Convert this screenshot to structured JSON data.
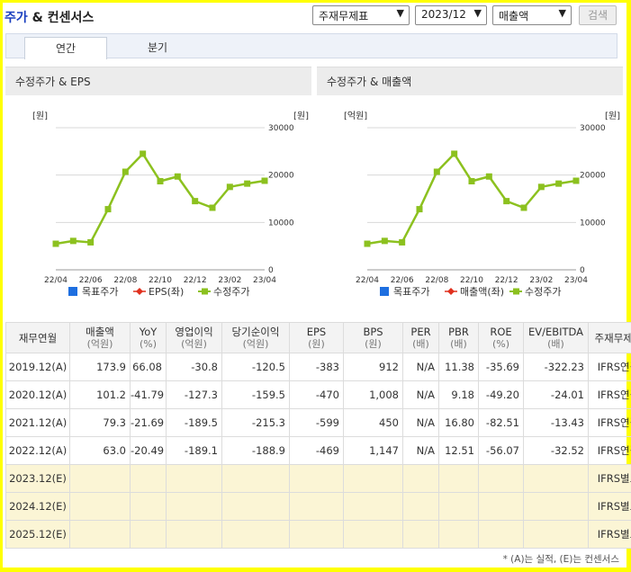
{
  "header": {
    "title_blue": "주가",
    "title_rest": " & 컨센서스",
    "select_statement": "주재무제표",
    "select_period": "2023/12",
    "select_metric": "매출액",
    "search_label": "검색"
  },
  "tabs": [
    "연간",
    "분기"
  ],
  "charts": [
    {
      "title": "수정주가 & EPS",
      "left_unit": "[원]",
      "right_unit": "[원]",
      "legend": [
        "목표주가",
        "EPS(좌)",
        "수정주가"
      ]
    },
    {
      "title": "수정주가 & 매출액",
      "left_unit": "[억원]",
      "right_unit": "[원]",
      "legend": [
        "목표주가",
        "매출액(좌)",
        "수정주가"
      ]
    }
  ],
  "chart_data": [
    {
      "type": "line",
      "title": "수정주가 & EPS",
      "x": [
        "22/04",
        "22/05",
        "22/06",
        "22/07",
        "22/08",
        "22/09",
        "22/10",
        "22/11",
        "22/12",
        "23/01",
        "23/02",
        "23/03",
        "23/04"
      ],
      "x_ticks": [
        "22/04",
        "22/06",
        "22/08",
        "22/10",
        "22/12",
        "23/02",
        "23/04"
      ],
      "y_right_ticks": [
        "0",
        "10000",
        "20000",
        "30000"
      ],
      "y_right_range": [
        0,
        30000
      ],
      "series": [
        {
          "name": "수정주가",
          "color": "#8cc11f",
          "values": [
            5500,
            6100,
            5800,
            12800,
            20700,
            24500,
            18700,
            19700,
            14500,
            13100,
            17500,
            18200,
            18800
          ]
        }
      ]
    },
    {
      "type": "line",
      "title": "수정주가 & 매출액",
      "x": [
        "22/04",
        "22/05",
        "22/06",
        "22/07",
        "22/08",
        "22/09",
        "22/10",
        "22/11",
        "22/12",
        "23/01",
        "23/02",
        "23/03",
        "23/04"
      ],
      "x_ticks": [
        "22/04",
        "22/06",
        "22/08",
        "22/10",
        "22/12",
        "23/02",
        "23/04"
      ],
      "y_right_ticks": [
        "0",
        "10000",
        "20000",
        "30000"
      ],
      "y_right_range": [
        0,
        30000
      ],
      "series": [
        {
          "name": "수정주가",
          "color": "#8cc11f",
          "values": [
            5500,
            6100,
            5800,
            12800,
            20700,
            24500,
            18700,
            19700,
            14500,
            13100,
            17500,
            18200,
            18800
          ]
        }
      ]
    }
  ],
  "table": {
    "headers": [
      {
        "label": "재무연월",
        "unit": ""
      },
      {
        "label": "매출액",
        "unit": "(억원)"
      },
      {
        "label": "YoY",
        "unit": "(%)"
      },
      {
        "label": "영업이익",
        "unit": "(억원)"
      },
      {
        "label": "당기순이익",
        "unit": "(억원)"
      },
      {
        "label": "EPS",
        "unit": "(원)"
      },
      {
        "label": "BPS",
        "unit": "(원)"
      },
      {
        "label": "PER",
        "unit": "(배)"
      },
      {
        "label": "PBR",
        "unit": "(배)"
      },
      {
        "label": "ROE",
        "unit": "(%)"
      },
      {
        "label": "EV/EBITDA",
        "unit": "(배)"
      },
      {
        "label": "주재무제표",
        "unit": ""
      }
    ],
    "rows": [
      {
        "est": false,
        "cells": [
          "2019.12(A)",
          "173.9",
          "66.08",
          "-30.8",
          "-120.5",
          "-383",
          "912",
          "N/A",
          "11.38",
          "-35.69",
          "-322.23",
          "IFRS연결"
        ]
      },
      {
        "est": false,
        "cells": [
          "2020.12(A)",
          "101.2",
          "-41.79",
          "-127.3",
          "-159.5",
          "-470",
          "1,008",
          "N/A",
          "9.18",
          "-49.20",
          "-24.01",
          "IFRS연결"
        ]
      },
      {
        "est": false,
        "cells": [
          "2021.12(A)",
          "79.3",
          "-21.69",
          "-189.5",
          "-215.3",
          "-599",
          "450",
          "N/A",
          "16.80",
          "-82.51",
          "-13.43",
          "IFRS연결"
        ]
      },
      {
        "est": false,
        "cells": [
          "2022.12(A)",
          "63.0",
          "-20.49",
          "-189.1",
          "-188.9",
          "-469",
          "1,147",
          "N/A",
          "12.51",
          "-56.07",
          "-32.52",
          "IFRS연결"
        ]
      },
      {
        "est": true,
        "cells": [
          "2023.12(E)",
          "",
          "",
          "",
          "",
          "",
          "",
          "",
          "",
          "",
          "",
          "IFRS별도"
        ]
      },
      {
        "est": true,
        "cells": [
          "2024.12(E)",
          "",
          "",
          "",
          "",
          "",
          "",
          "",
          "",
          "",
          "",
          "IFRS별도"
        ]
      },
      {
        "est": true,
        "cells": [
          "2025.12(E)",
          "",
          "",
          "",
          "",
          "",
          "",
          "",
          "",
          "",
          "",
          "IFRS별도"
        ]
      }
    ]
  },
  "note": "* (A)는 실적, (E)는 컨센서스",
  "colors": {
    "target_price": "#1e6fe0",
    "eps": "#e0301e",
    "adj_price": "#8cc11f"
  }
}
